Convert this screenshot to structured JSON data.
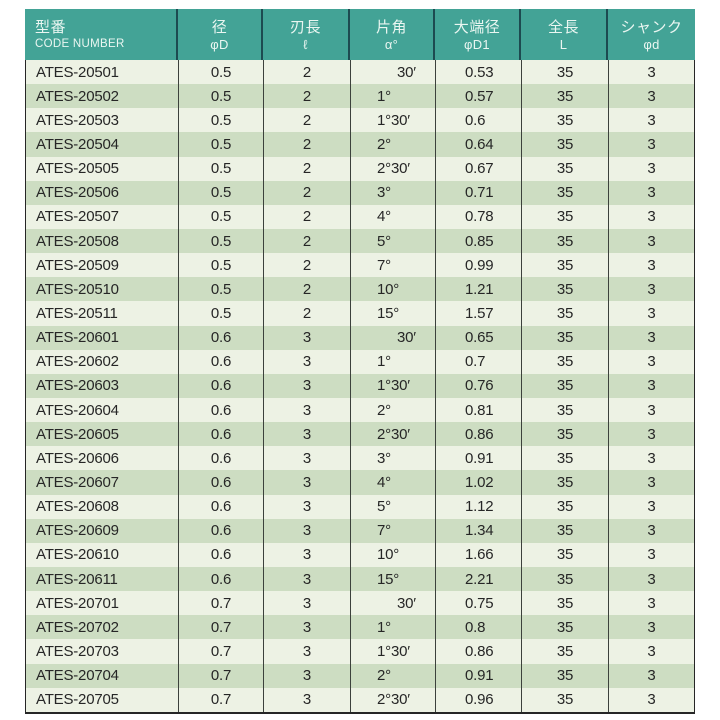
{
  "table": {
    "columns": [
      {
        "key": "code",
        "jp": "型番",
        "sub": "CODE NUMBER"
      },
      {
        "key": "diameter",
        "jp": "径",
        "sub": "φD"
      },
      {
        "key": "flute-length",
        "jp": "刃長",
        "sub": "ℓ"
      },
      {
        "key": "half-angle",
        "jp": "片角",
        "sub": "α°"
      },
      {
        "key": "large-end-diameter",
        "jp": "大端径",
        "sub": "φD1"
      },
      {
        "key": "overall-length",
        "jp": "全長",
        "sub": "L"
      },
      {
        "key": "shank",
        "jp": "シャンク",
        "sub": "φd"
      }
    ],
    "rows": [
      [
        "ATES-20501",
        "0.5",
        "2",
        "30′",
        "0.53",
        "35",
        "3"
      ],
      [
        "ATES-20502",
        "0.5",
        "2",
        "1°",
        "0.57",
        "35",
        "3"
      ],
      [
        "ATES-20503",
        "0.5",
        "2",
        "1°30′",
        "0.6",
        "35",
        "3"
      ],
      [
        "ATES-20504",
        "0.5",
        "2",
        "2°",
        "0.64",
        "35",
        "3"
      ],
      [
        "ATES-20505",
        "0.5",
        "2",
        "2°30′",
        "0.67",
        "35",
        "3"
      ],
      [
        "ATES-20506",
        "0.5",
        "2",
        "3°",
        "0.71",
        "35",
        "3"
      ],
      [
        "ATES-20507",
        "0.5",
        "2",
        "4°",
        "0.78",
        "35",
        "3"
      ],
      [
        "ATES-20508",
        "0.5",
        "2",
        "5°",
        "0.85",
        "35",
        "3"
      ],
      [
        "ATES-20509",
        "0.5",
        "2",
        "7°",
        "0.99",
        "35",
        "3"
      ],
      [
        "ATES-20510",
        "0.5",
        "2",
        "10°",
        "1.21",
        "35",
        "3"
      ],
      [
        "ATES-20511",
        "0.5",
        "2",
        "15°",
        "1.57",
        "35",
        "3"
      ],
      [
        "ATES-20601",
        "0.6",
        "3",
        "30′",
        "0.65",
        "35",
        "3"
      ],
      [
        "ATES-20602",
        "0.6",
        "3",
        "1°",
        "0.7",
        "35",
        "3"
      ],
      [
        "ATES-20603",
        "0.6",
        "3",
        "1°30′",
        "0.76",
        "35",
        "3"
      ],
      [
        "ATES-20604",
        "0.6",
        "3",
        "2°",
        "0.81",
        "35",
        "3"
      ],
      [
        "ATES-20605",
        "0.6",
        "3",
        "2°30′",
        "0.86",
        "35",
        "3"
      ],
      [
        "ATES-20606",
        "0.6",
        "3",
        "3°",
        "0.91",
        "35",
        "3"
      ],
      [
        "ATES-20607",
        "0.6",
        "3",
        "4°",
        "1.02",
        "35",
        "3"
      ],
      [
        "ATES-20608",
        "0.6",
        "3",
        "5°",
        "1.12",
        "35",
        "3"
      ],
      [
        "ATES-20609",
        "0.6",
        "3",
        "7°",
        "1.34",
        "35",
        "3"
      ],
      [
        "ATES-20610",
        "0.6",
        "3",
        "10°",
        "1.66",
        "35",
        "3"
      ],
      [
        "ATES-20611",
        "0.6",
        "3",
        "15°",
        "2.21",
        "35",
        "3"
      ],
      [
        "ATES-20701",
        "0.7",
        "3",
        "30′",
        "0.75",
        "35",
        "3"
      ],
      [
        "ATES-20702",
        "0.7",
        "3",
        "1°",
        "0.8",
        "35",
        "3"
      ],
      [
        "ATES-20703",
        "0.7",
        "3",
        "1°30′",
        "0.86",
        "35",
        "3"
      ],
      [
        "ATES-20704",
        "0.7",
        "3",
        "2°",
        "0.91",
        "35",
        "3"
      ],
      [
        "ATES-20705",
        "0.7",
        "3",
        "2°30′",
        "0.96",
        "35",
        "3"
      ]
    ]
  },
  "colors": {
    "header_bg": "#43a396",
    "header_text": "#eaf6f1",
    "header_divider": "#1d4a50",
    "row_light": "#edf2e4",
    "row_dark": "#cdddc2",
    "grid_line": "#3c413c",
    "outer_border": "#262626",
    "text": "#262626"
  }
}
